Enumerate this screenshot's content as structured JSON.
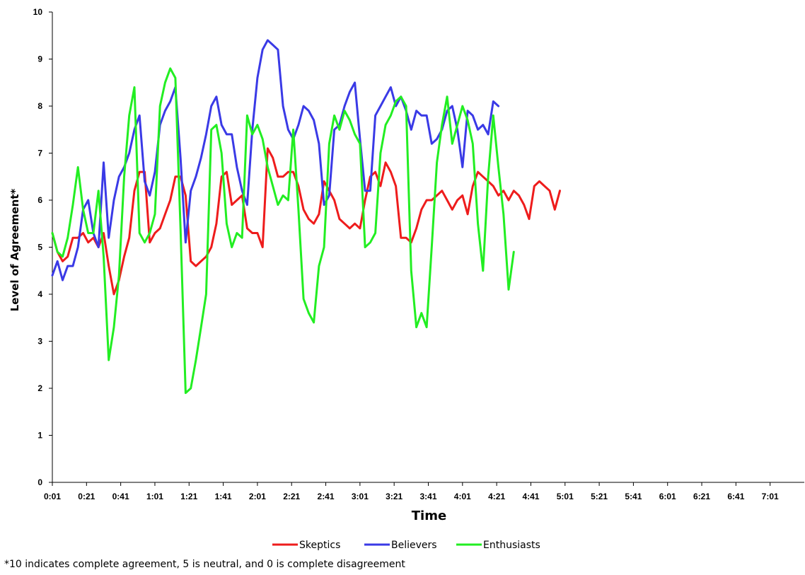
{
  "chart_data": {
    "type": "line",
    "title": "",
    "xlabel": "Time",
    "ylabel": "Level of Agreement*",
    "ylim": [
      0,
      10
    ],
    "y_ticks": [
      "0",
      "1",
      "2",
      "3",
      "4",
      "5",
      "6",
      "7",
      "8",
      "9",
      "10"
    ],
    "x_range": [
      0,
      440
    ],
    "x_ticks": [
      {
        "t": 0,
        "label": "0:01"
      },
      {
        "t": 20,
        "label": "0:21"
      },
      {
        "t": 40,
        "label": "0:41"
      },
      {
        "t": 60,
        "label": "1:01"
      },
      {
        "t": 80,
        "label": "1:21"
      },
      {
        "t": 100,
        "label": "1:41"
      },
      {
        "t": 120,
        "label": "2:01"
      },
      {
        "t": 140,
        "label": "2:21"
      },
      {
        "t": 160,
        "label": "2:41"
      },
      {
        "t": 180,
        "label": "3:01"
      },
      {
        "t": 200,
        "label": "3:21"
      },
      {
        "t": 220,
        "label": "3:41"
      },
      {
        "t": 240,
        "label": "4:01"
      },
      {
        "t": 260,
        "label": "4:21"
      },
      {
        "t": 280,
        "label": "4:41"
      },
      {
        "t": 300,
        "label": "5:01"
      },
      {
        "t": 320,
        "label": "5:21"
      },
      {
        "t": 340,
        "label": "5:41"
      },
      {
        "t": 360,
        "label": "6:01"
      },
      {
        "t": 380,
        "label": "6:21"
      },
      {
        "t": 400,
        "label": "6:41"
      },
      {
        "t": 420,
        "label": "7:01"
      }
    ],
    "grid": false,
    "legend_position": "bottom",
    "footnote": "*10 indicates complete agreement, 5 is neutral, and 0 is complete disagreement",
    "series": [
      {
        "name": "Skeptics",
        "color": "#ee1c1c",
        "points": [
          [
            0,
            5.3
          ],
          [
            3,
            4.9
          ],
          [
            6,
            4.7
          ],
          [
            9,
            4.8
          ],
          [
            12,
            5.2
          ],
          [
            15,
            5.2
          ],
          [
            18,
            5.3
          ],
          [
            21,
            5.1
          ],
          [
            24,
            5.2
          ],
          [
            27,
            5.0
          ],
          [
            30,
            5.3
          ],
          [
            33,
            4.6
          ],
          [
            36,
            4.0
          ],
          [
            39,
            4.3
          ],
          [
            42,
            4.8
          ],
          [
            45,
            5.2
          ],
          [
            48,
            6.2
          ],
          [
            51,
            6.6
          ],
          [
            54,
            6.6
          ],
          [
            57,
            5.1
          ],
          [
            60,
            5.3
          ],
          [
            63,
            5.4
          ],
          [
            66,
            5.7
          ],
          [
            69,
            6.0
          ],
          [
            72,
            6.5
          ],
          [
            75,
            6.5
          ],
          [
            78,
            6.1
          ],
          [
            81,
            4.7
          ],
          [
            84,
            4.6
          ],
          [
            87,
            4.7
          ],
          [
            90,
            4.8
          ],
          [
            93,
            5.0
          ],
          [
            96,
            5.5
          ],
          [
            99,
            6.5
          ],
          [
            102,
            6.6
          ],
          [
            105,
            5.9
          ],
          [
            108,
            6.0
          ],
          [
            111,
            6.1
          ],
          [
            114,
            5.4
          ],
          [
            117,
            5.3
          ],
          [
            120,
            5.3
          ],
          [
            123,
            5.0
          ],
          [
            126,
            7.1
          ],
          [
            129,
            6.9
          ],
          [
            132,
            6.5
          ],
          [
            135,
            6.5
          ],
          [
            138,
            6.6
          ],
          [
            141,
            6.6
          ],
          [
            144,
            6.3
          ],
          [
            147,
            5.8
          ],
          [
            150,
            5.6
          ],
          [
            153,
            5.5
          ],
          [
            156,
            5.7
          ],
          [
            159,
            6.4
          ],
          [
            162,
            6.2
          ],
          [
            165,
            6.0
          ],
          [
            168,
            5.6
          ],
          [
            171,
            5.5
          ],
          [
            174,
            5.4
          ],
          [
            177,
            5.5
          ],
          [
            180,
            5.4
          ],
          [
            183,
            6.0
          ],
          [
            186,
            6.5
          ],
          [
            189,
            6.6
          ],
          [
            192,
            6.3
          ],
          [
            195,
            6.8
          ],
          [
            198,
            6.6
          ],
          [
            201,
            6.3
          ],
          [
            204,
            5.2
          ],
          [
            207,
            5.2
          ],
          [
            210,
            5.1
          ],
          [
            213,
            5.4
          ],
          [
            216,
            5.8
          ],
          [
            219,
            6.0
          ],
          [
            222,
            6.0
          ],
          [
            225,
            6.1
          ],
          [
            228,
            6.2
          ],
          [
            231,
            6.0
          ],
          [
            234,
            5.8
          ],
          [
            237,
            6.0
          ],
          [
            240,
            6.1
          ],
          [
            243,
            5.7
          ],
          [
            246,
            6.3
          ],
          [
            249,
            6.6
          ],
          [
            252,
            6.5
          ],
          [
            255,
            6.4
          ],
          [
            258,
            6.3
          ],
          [
            261,
            6.1
          ],
          [
            264,
            6.2
          ],
          [
            267,
            6.0
          ],
          [
            270,
            6.2
          ],
          [
            273,
            6.1
          ],
          [
            276,
            5.9
          ],
          [
            279,
            5.6
          ],
          [
            282,
            6.3
          ],
          [
            285,
            6.4
          ],
          [
            288,
            6.3
          ],
          [
            291,
            6.2
          ],
          [
            294,
            5.8
          ],
          [
            297,
            6.2
          ]
        ]
      },
      {
        "name": "Believers",
        "color": "#3a3ae6",
        "points": [
          [
            0,
            4.4
          ],
          [
            3,
            4.7
          ],
          [
            6,
            4.3
          ],
          [
            9,
            4.6
          ],
          [
            12,
            4.6
          ],
          [
            15,
            5.0
          ],
          [
            18,
            5.8
          ],
          [
            21,
            6.0
          ],
          [
            24,
            5.3
          ],
          [
            27,
            5.0
          ],
          [
            30,
            6.8
          ],
          [
            33,
            5.2
          ],
          [
            36,
            6.0
          ],
          [
            39,
            6.5
          ],
          [
            42,
            6.7
          ],
          [
            45,
            7.0
          ],
          [
            48,
            7.5
          ],
          [
            51,
            7.8
          ],
          [
            54,
            6.4
          ],
          [
            57,
            6.1
          ],
          [
            60,
            6.6
          ],
          [
            63,
            7.6
          ],
          [
            66,
            7.9
          ],
          [
            69,
            8.1
          ],
          [
            72,
            8.4
          ],
          [
            75,
            6.9
          ],
          [
            78,
            5.1
          ],
          [
            81,
            6.2
          ],
          [
            84,
            6.5
          ],
          [
            87,
            6.9
          ],
          [
            90,
            7.4
          ],
          [
            93,
            8.0
          ],
          [
            96,
            8.2
          ],
          [
            99,
            7.6
          ],
          [
            102,
            7.4
          ],
          [
            105,
            7.4
          ],
          [
            108,
            6.7
          ],
          [
            111,
            6.2
          ],
          [
            114,
            5.9
          ],
          [
            117,
            7.5
          ],
          [
            120,
            8.6
          ],
          [
            123,
            9.2
          ],
          [
            126,
            9.4
          ],
          [
            129,
            9.3
          ],
          [
            132,
            9.2
          ],
          [
            135,
            8.0
          ],
          [
            138,
            7.5
          ],
          [
            141,
            7.3
          ],
          [
            144,
            7.6
          ],
          [
            147,
            8.0
          ],
          [
            150,
            7.9
          ],
          [
            153,
            7.7
          ],
          [
            156,
            7.2
          ],
          [
            159,
            5.9
          ],
          [
            162,
            6.1
          ],
          [
            165,
            7.5
          ],
          [
            168,
            7.6
          ],
          [
            171,
            8.0
          ],
          [
            174,
            8.3
          ],
          [
            177,
            8.5
          ],
          [
            180,
            7.3
          ],
          [
            183,
            6.2
          ],
          [
            186,
            6.2
          ],
          [
            189,
            7.8
          ],
          [
            192,
            8.0
          ],
          [
            195,
            8.2
          ],
          [
            198,
            8.4
          ],
          [
            201,
            8.0
          ],
          [
            204,
            8.2
          ],
          [
            207,
            7.9
          ],
          [
            210,
            7.5
          ],
          [
            213,
            7.9
          ],
          [
            216,
            7.8
          ],
          [
            219,
            7.8
          ],
          [
            222,
            7.2
          ],
          [
            225,
            7.3
          ],
          [
            228,
            7.5
          ],
          [
            231,
            7.9
          ],
          [
            234,
            8.0
          ],
          [
            237,
            7.5
          ],
          [
            240,
            6.7
          ],
          [
            243,
            7.9
          ],
          [
            246,
            7.8
          ],
          [
            249,
            7.5
          ],
          [
            252,
            7.6
          ],
          [
            255,
            7.4
          ],
          [
            258,
            8.1
          ],
          [
            261,
            8.0
          ]
        ]
      },
      {
        "name": "Enthusiasts",
        "color": "#22ee22",
        "points": [
          [
            0,
            5.3
          ],
          [
            3,
            4.9
          ],
          [
            6,
            4.8
          ],
          [
            9,
            5.2
          ],
          [
            12,
            5.9
          ],
          [
            15,
            6.7
          ],
          [
            18,
            5.8
          ],
          [
            21,
            5.3
          ],
          [
            24,
            5.3
          ],
          [
            27,
            6.2
          ],
          [
            30,
            4.8
          ],
          [
            33,
            2.6
          ],
          [
            36,
            3.3
          ],
          [
            39,
            4.4
          ],
          [
            42,
            6.5
          ],
          [
            45,
            7.8
          ],
          [
            48,
            8.4
          ],
          [
            51,
            5.3
          ],
          [
            54,
            5.1
          ],
          [
            57,
            5.3
          ],
          [
            60,
            5.7
          ],
          [
            63,
            8.0
          ],
          [
            66,
            8.5
          ],
          [
            69,
            8.8
          ],
          [
            72,
            8.6
          ],
          [
            75,
            5.4
          ],
          [
            78,
            1.9
          ],
          [
            81,
            2.0
          ],
          [
            84,
            2.6
          ],
          [
            87,
            3.3
          ],
          [
            90,
            4.0
          ],
          [
            93,
            7.5
          ],
          [
            96,
            7.6
          ],
          [
            99,
            7.0
          ],
          [
            102,
            5.5
          ],
          [
            105,
            5.0
          ],
          [
            108,
            5.3
          ],
          [
            111,
            5.2
          ],
          [
            114,
            7.8
          ],
          [
            117,
            7.4
          ],
          [
            120,
            7.6
          ],
          [
            123,
            7.3
          ],
          [
            126,
            6.7
          ],
          [
            129,
            6.3
          ],
          [
            132,
            5.9
          ],
          [
            135,
            6.1
          ],
          [
            138,
            6.0
          ],
          [
            141,
            7.5
          ],
          [
            144,
            5.8
          ],
          [
            147,
            3.9
          ],
          [
            150,
            3.6
          ],
          [
            153,
            3.4
          ],
          [
            156,
            4.6
          ],
          [
            159,
            5.0
          ],
          [
            162,
            7.2
          ],
          [
            165,
            7.8
          ],
          [
            168,
            7.5
          ],
          [
            171,
            7.9
          ],
          [
            174,
            7.7
          ],
          [
            177,
            7.4
          ],
          [
            180,
            7.2
          ],
          [
            183,
            5.0
          ],
          [
            186,
            5.1
          ],
          [
            189,
            5.3
          ],
          [
            192,
            7.0
          ],
          [
            195,
            7.6
          ],
          [
            198,
            7.8
          ],
          [
            201,
            8.1
          ],
          [
            204,
            8.2
          ],
          [
            207,
            8.0
          ],
          [
            210,
            4.5
          ],
          [
            213,
            3.3
          ],
          [
            216,
            3.6
          ],
          [
            219,
            3.3
          ],
          [
            222,
            5.0
          ],
          [
            225,
            6.8
          ],
          [
            228,
            7.6
          ],
          [
            231,
            8.2
          ],
          [
            234,
            7.2
          ],
          [
            237,
            7.6
          ],
          [
            240,
            8.0
          ],
          [
            243,
            7.7
          ],
          [
            246,
            7.2
          ],
          [
            249,
            5.5
          ],
          [
            252,
            4.5
          ],
          [
            255,
            6.5
          ],
          [
            258,
            7.8
          ],
          [
            261,
            6.7
          ],
          [
            264,
            5.7
          ],
          [
            267,
            4.1
          ],
          [
            270,
            4.9
          ]
        ]
      }
    ]
  }
}
